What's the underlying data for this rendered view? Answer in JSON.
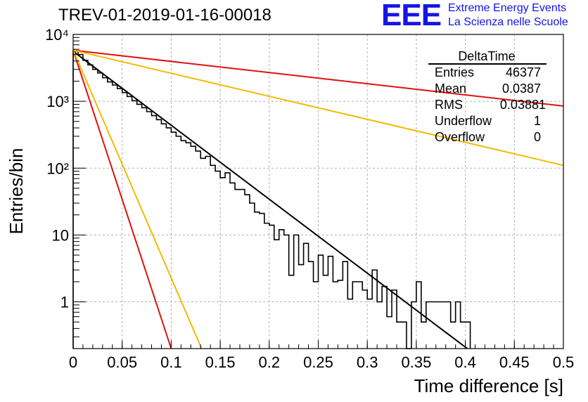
{
  "header": {
    "title": "TREV-01-2019-01-16-00018",
    "logo_text": "EEE",
    "logo_line1": "Extreme Energy Events",
    "logo_line2": "La Scienza nelle Scuole",
    "logo_color": "#1515e6"
  },
  "stats": {
    "name": "DeltaTime",
    "rows": [
      {
        "label": "Entries",
        "value": "46377"
      },
      {
        "label": "Mean",
        "value": "0.0387"
      },
      {
        "label": "RMS",
        "value": "0.03881"
      },
      {
        "label": "Underflow",
        "value": "1"
      },
      {
        "label": "Overflow",
        "value": "0"
      }
    ]
  },
  "chart_data": {
    "type": "line",
    "title": "TREV-01-2019-01-16-00018",
    "xlabel": "Time difference [s]",
    "ylabel": "Entries/bin",
    "xlim": [
      0,
      0.5
    ],
    "ylim": [
      0.2,
      10000
    ],
    "yscale": "log",
    "grid": true,
    "x_ticks": [
      "0",
      "0.05",
      "0.1",
      "0.15",
      "0.2",
      "0.25",
      "0.3",
      "0.35",
      "0.4",
      "0.45",
      "0.5"
    ],
    "y_ticks": [
      "1",
      "10",
      "10²",
      "10³",
      "10⁴"
    ],
    "histogram": {
      "bin_width": 0.005,
      "color": "#000000",
      "values": [
        5600,
        5000,
        4100,
        3500,
        3000,
        2650,
        2250,
        1950,
        1750,
        1550,
        1350,
        1180,
        1020,
        900,
        800,
        700,
        610,
        530,
        460,
        400,
        345,
        300,
        258,
        240,
        212,
        180,
        140,
        150,
        110,
        90,
        72,
        85,
        60,
        48,
        48,
        40,
        30,
        22,
        21,
        15,
        14,
        8.5,
        12,
        10,
        2.5,
        10,
        3.6,
        7.5,
        4,
        2,
        5,
        2.5,
        4.8,
        2,
        2.1,
        4,
        1.1,
        2,
        2,
        1.5,
        1.1,
        3,
        1,
        1.7,
        0.6,
        1.5,
        0.5,
        0.5,
        0,
        1,
        2,
        0.5,
        1,
        1,
        1,
        1,
        1,
        0.5,
        1,
        0.5,
        0.5
      ],
      "range": [
        0,
        0.405
      ]
    },
    "series": [
      {
        "color": "#000000",
        "points": [
          [
            0,
            5600
          ],
          [
            0.402,
            0.2
          ]
        ]
      },
      {
        "color": "#e01010",
        "points": [
          [
            0,
            5800
          ],
          [
            0.5,
            850
          ]
        ]
      },
      {
        "color": "#f5bb00",
        "points": [
          [
            0,
            5800
          ],
          [
            0.5,
            110
          ]
        ]
      },
      {
        "color": "#e01010",
        "points": [
          [
            0,
            5800
          ],
          [
            0.1,
            0.2
          ]
        ]
      },
      {
        "color": "#f5bb00",
        "points": [
          [
            0,
            5800
          ],
          [
            0.131,
            0.2
          ]
        ]
      }
    ]
  }
}
